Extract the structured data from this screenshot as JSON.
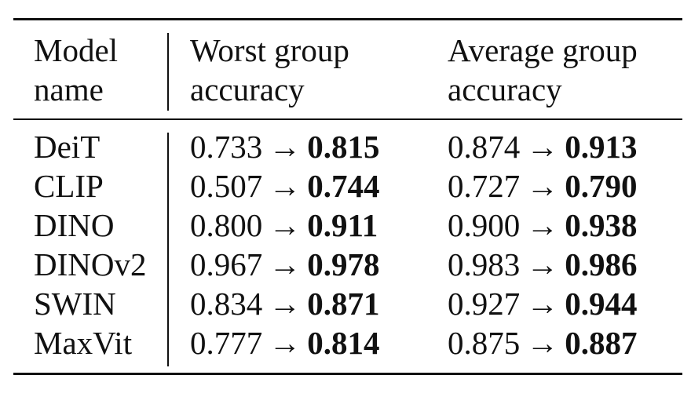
{
  "table": {
    "headers": {
      "model": [
        "Model",
        "name"
      ],
      "worst": [
        "Worst group",
        "accuracy"
      ],
      "average": [
        "Average group",
        "accuracy"
      ]
    },
    "arrow": "→",
    "rows": [
      {
        "model": "DeiT",
        "worst_before": "0.733",
        "worst_after": "0.815",
        "avg_before": "0.874",
        "avg_after": "0.913"
      },
      {
        "model": "CLIP",
        "worst_before": "0.507",
        "worst_after": "0.744",
        "avg_before": "0.727",
        "avg_after": "0.790"
      },
      {
        "model": "DINO",
        "worst_before": "0.800",
        "worst_after": "0.911",
        "avg_before": "0.900",
        "avg_after": "0.938"
      },
      {
        "model": "DINOv2",
        "worst_before": "0.967",
        "worst_after": "0.978",
        "avg_before": "0.983",
        "avg_after": "0.986"
      },
      {
        "model": "SWIN",
        "worst_before": "0.834",
        "worst_after": "0.871",
        "avg_before": "0.927",
        "avg_after": "0.944"
      },
      {
        "model": "MaxVit",
        "worst_before": "0.777",
        "worst_after": "0.814",
        "avg_before": "0.875",
        "avg_after": "0.887"
      }
    ]
  }
}
